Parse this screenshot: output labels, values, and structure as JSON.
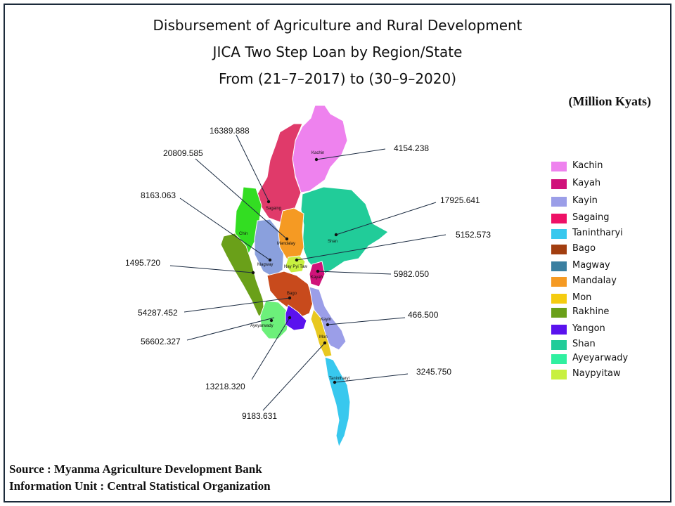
{
  "title": {
    "line1": "Disbursement of Agriculture and Rural Development",
    "line2": "JICA Two Step Loan by Region/State",
    "line3": "From (21–7–2017) to (30–9–2020)"
  },
  "units": "(Million Kyats)",
  "footer": {
    "source": "Source : Myanma Agriculture Development Bank",
    "info": "Information Unit : Central Statistical Organization"
  },
  "legend": [
    {
      "name": "Kachin",
      "color": "#ee82ee"
    },
    {
      "name": "Kayah",
      "color": "#d0127a"
    },
    {
      "name": "Kayin",
      "color": "#9b9ee8"
    },
    {
      "name": "Sagaing",
      "color": "#ee1166"
    },
    {
      "name": "Tanintharyi",
      "color": "#38c8ee"
    },
    {
      "name": "Bago",
      "color": "#a23e10"
    },
    {
      "name": "Magway",
      "color": "#3a7fa0"
    },
    {
      "name": "Mandalay",
      "color": "#f59a23"
    },
    {
      "name": "Mon",
      "color": "#f5cc10"
    },
    {
      "name": "Rakhine",
      "color": "#6aa019"
    },
    {
      "name": "Yangon",
      "color": "#5a12ee"
    },
    {
      "name": "Shan",
      "color": "#21cc99"
    },
    {
      "name": "Ayeyarwady",
      "color": "#30f0a0"
    },
    {
      "name": "Naypyitaw",
      "color": "#c8f040"
    }
  ],
  "map_labels": {
    "kachin": "Kachin",
    "sagaing": "Sagaing",
    "shan": "Shan",
    "chin": "Chin",
    "mandalay": "Mandalay",
    "magway": "Magway",
    "naypyitaw": "Nay Pyi Taw",
    "kayah": "Kayah",
    "bago": "Bago",
    "ayeyarwady": "Ayeyarwady",
    "kayin": "Kayin",
    "mon": "Mon",
    "tanintharyi": "Tanintharyi"
  },
  "chart_data": {
    "type": "map",
    "title": "Disbursement of Agriculture and Rural Development JICA Two Step Loan by Region/State From (21–7–2017) to (30–9–2020)",
    "units": "Million Kyats",
    "values": {
      "kachin": "4154.238",
      "sagaing": "16389.888",
      "mandalay": "20809.585",
      "magway": "8163.063",
      "rakhine": "1495.720",
      "bago": "54287.452",
      "ayeyarwady": "56602.327",
      "yangon": "13218.320",
      "mon": "9183.631",
      "shan": "17925.641",
      "naypyitaw": "5152.573",
      "kayah": "5982.050",
      "kayin": "466.500",
      "tanintharyi": "3245.750"
    }
  }
}
